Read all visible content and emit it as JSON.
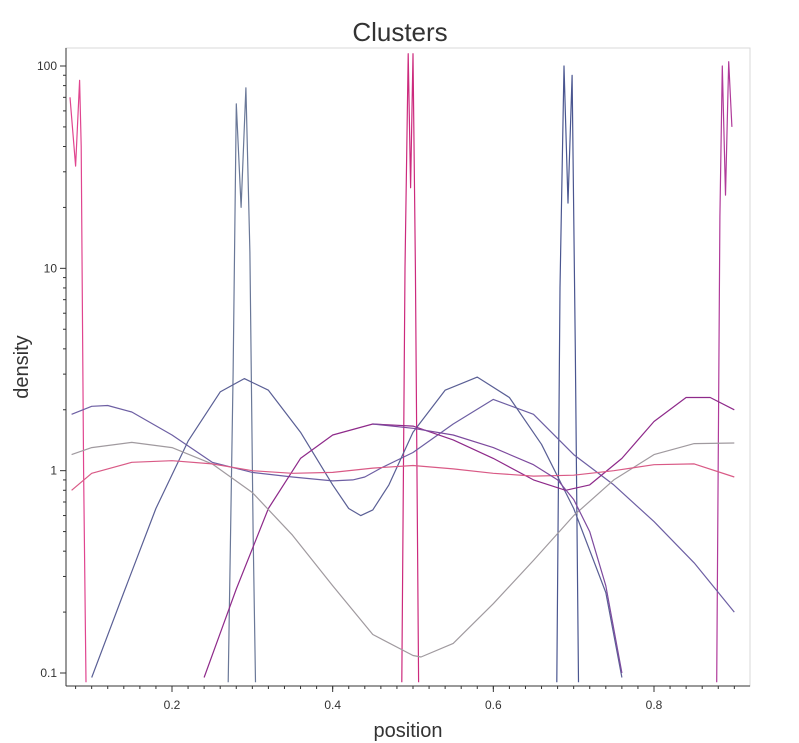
{
  "chart_data": {
    "type": "line",
    "title": "Clusters",
    "xlabel": "position",
    "ylabel": "density",
    "yscale": "log",
    "xlim": [
      0.07,
      0.91
    ],
    "ylim": [
      0.095,
      115
    ],
    "xticks": [
      {
        "value": 0.2,
        "label": "0.2"
      },
      {
        "value": 0.4,
        "label": "0.4"
      },
      {
        "value": 0.6,
        "label": "0.6"
      },
      {
        "value": 0.8,
        "label": "0.8"
      }
    ],
    "yticks": [
      {
        "value": 0.1,
        "label": "0.1"
      },
      {
        "value": 1,
        "label": "1"
      },
      {
        "value": 10,
        "label": "10"
      },
      {
        "value": 100,
        "label": "100"
      }
    ],
    "grid": false,
    "legend": "none",
    "series": [
      {
        "color": "#e0458f",
        "x": [
          0.073,
          0.08,
          0.085,
          0.087,
          0.09,
          0.093
        ],
        "y": [
          70,
          32,
          85,
          40,
          1,
          0.09
        ]
      },
      {
        "color": "#6a7898",
        "x": [
          0.27,
          0.276,
          0.28,
          0.286,
          0.292,
          0.297,
          0.301,
          0.304
        ],
        "y": [
          0.09,
          3,
          65,
          20,
          78,
          12,
          0.5,
          0.09
        ]
      },
      {
        "color": "#cc2a7d",
        "x": [
          0.486,
          0.49,
          0.494,
          0.497,
          0.5,
          0.503,
          0.507
        ],
        "y": [
          0.09,
          10,
          115,
          25,
          115,
          10,
          0.09
        ]
      },
      {
        "color": "#4a5690",
        "x": [
          0.679,
          0.683,
          0.688,
          0.693,
          0.698,
          0.702,
          0.706
        ],
        "y": [
          0.09,
          8,
          100,
          21,
          90,
          4,
          0.09
        ]
      },
      {
        "color": "#b03a9a",
        "x": [
          0.878,
          0.882,
          0.885,
          0.889,
          0.893,
          0.897
        ],
        "y": [
          0.09,
          18,
          100,
          23,
          105,
          50
        ]
      },
      {
        "color": "#6d5fa3",
        "x": [
          0.075,
          0.1,
          0.12,
          0.15,
          0.2,
          0.25,
          0.3,
          0.35,
          0.4,
          0.425,
          0.44,
          0.46,
          0.5,
          0.55,
          0.6,
          0.65,
          0.7,
          0.75,
          0.8,
          0.85,
          0.9
        ],
        "y": [
          1.9,
          2.08,
          2.1,
          1.95,
          1.5,
          1.1,
          0.98,
          0.93,
          0.89,
          0.9,
          0.93,
          1.03,
          1.23,
          1.7,
          2.25,
          1.9,
          1.2,
          0.85,
          0.56,
          0.35,
          0.2
        ]
      },
      {
        "color": "#5a5f95",
        "x": [
          0.1,
          0.14,
          0.18,
          0.22,
          0.26,
          0.29,
          0.32,
          0.36,
          0.4,
          0.42,
          0.435,
          0.45,
          0.47,
          0.5,
          0.54,
          0.58,
          0.62,
          0.66,
          0.7,
          0.74,
          0.76
        ],
        "y": [
          0.095,
          0.25,
          0.65,
          1.4,
          2.45,
          2.85,
          2.5,
          1.55,
          0.85,
          0.65,
          0.6,
          0.64,
          0.85,
          1.55,
          2.5,
          2.9,
          2.3,
          1.35,
          0.65,
          0.25,
          0.095
        ]
      },
      {
        "color": "#8e2a8a",
        "x": [
          0.24,
          0.28,
          0.32,
          0.36,
          0.4,
          0.45,
          0.5,
          0.55,
          0.6,
          0.65,
          0.69,
          0.72,
          0.76,
          0.8,
          0.84,
          0.87,
          0.9
        ],
        "y": [
          0.095,
          0.26,
          0.65,
          1.15,
          1.5,
          1.7,
          1.66,
          1.42,
          1.15,
          0.9,
          0.8,
          0.85,
          1.15,
          1.75,
          2.3,
          2.3,
          2.0
        ]
      },
      {
        "color": "#a09a9f",
        "x": [
          0.075,
          0.1,
          0.15,
          0.2,
          0.25,
          0.3,
          0.35,
          0.4,
          0.45,
          0.5,
          0.51,
          0.55,
          0.6,
          0.65,
          0.7,
          0.75,
          0.8,
          0.85,
          0.9
        ],
        "y": [
          1.2,
          1.3,
          1.38,
          1.3,
          1.08,
          0.78,
          0.48,
          0.27,
          0.155,
          0.122,
          0.12,
          0.14,
          0.22,
          0.36,
          0.6,
          0.9,
          1.2,
          1.36,
          1.37
        ]
      },
      {
        "color": "#d95a86",
        "x": [
          0.075,
          0.1,
          0.15,
          0.2,
          0.25,
          0.3,
          0.35,
          0.4,
          0.45,
          0.5,
          0.55,
          0.6,
          0.65,
          0.7,
          0.75,
          0.8,
          0.85,
          0.9
        ],
        "y": [
          0.8,
          0.97,
          1.1,
          1.12,
          1.08,
          1.0,
          0.97,
          0.98,
          1.03,
          1.06,
          1.02,
          0.97,
          0.94,
          0.95,
          1.0,
          1.07,
          1.08,
          0.93
        ]
      },
      {
        "color": "#7d4a9e",
        "x": [
          0.45,
          0.5,
          0.55,
          0.6,
          0.65,
          0.68,
          0.7,
          0.72,
          0.74,
          0.76
        ],
        "y": [
          1.7,
          1.62,
          1.5,
          1.3,
          1.07,
          0.9,
          0.72,
          0.5,
          0.27,
          0.1
        ]
      }
    ]
  }
}
